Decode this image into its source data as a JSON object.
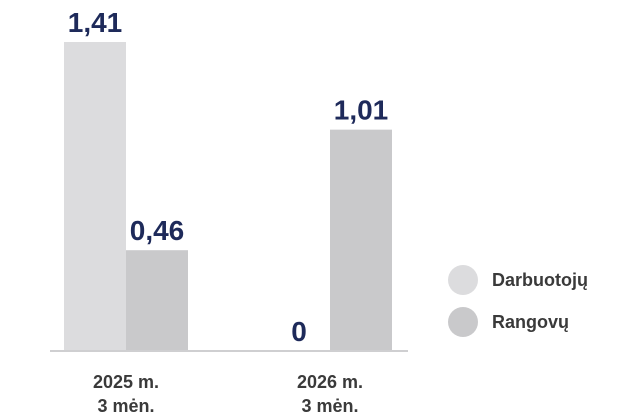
{
  "chart_data": {
    "type": "bar",
    "categories": [
      [
        "2025 m.",
        "3 mėn."
      ],
      [
        "2026 m.",
        "3 mėn."
      ]
    ],
    "series": [
      {
        "name": "Darbuotojų",
        "values": [
          1.41,
          0
        ],
        "value_labels": [
          "1,41",
          "0"
        ],
        "color": "#dcdcde"
      },
      {
        "name": "Rangovų",
        "values": [
          0.46,
          1.01
        ],
        "value_labels": [
          "0,46",
          "1,01"
        ],
        "color": "#c9c9cb"
      }
    ],
    "ylim": [
      0,
      1.41
    ],
    "grid": false,
    "legend_position": "right",
    "label_color": "#1e2a5a",
    "axis_color": "#cfcfd1"
  }
}
